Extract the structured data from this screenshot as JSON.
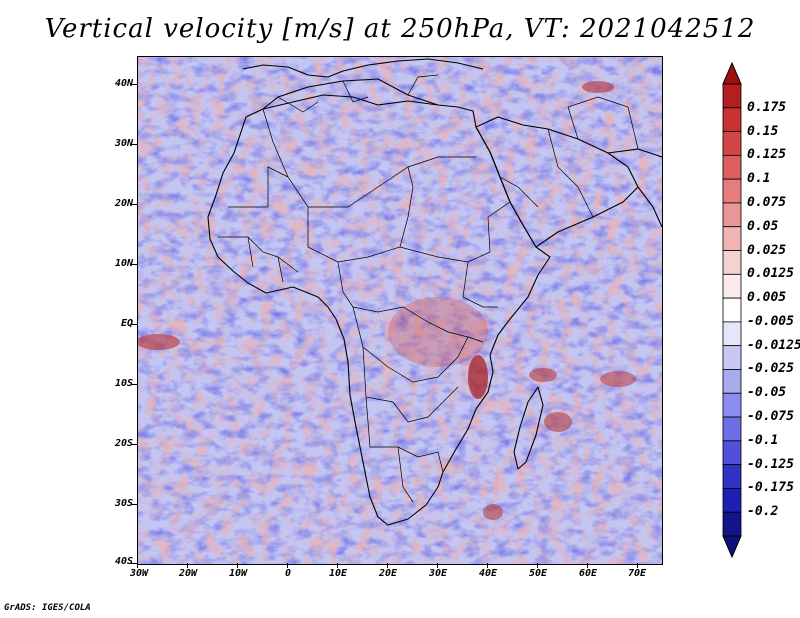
{
  "title": "Vertical velocity [m/s] at 250hPa, VT: 2021042512",
  "footer": "GrADS: IGES/COLA",
  "map": {
    "lat_labels": [
      "40N",
      "30N",
      "20N",
      "10N",
      "EQ",
      "10S",
      "20S",
      "30S",
      "40S"
    ],
    "lon_labels": [
      "30W",
      "20W",
      "10W",
      "0",
      "10E",
      "20E",
      "30E",
      "40E",
      "50E",
      "60E",
      "70E"
    ],
    "lat_range": [
      -40,
      45
    ],
    "lon_range": [
      -30,
      75
    ]
  },
  "colorbar": {
    "labels": [
      "0.175",
      "0.15",
      "0.125",
      "0.1",
      "0.075",
      "0.05",
      "0.025",
      "0.0125",
      "0.005",
      "-0.005",
      "-0.0125",
      "-0.025",
      "-0.05",
      "-0.075",
      "-0.1",
      "-0.125",
      "-0.175",
      "-0.2"
    ],
    "colors": [
      "#b41e1e",
      "#c83232",
      "#d24646",
      "#dc5f5f",
      "#e67d7d",
      "#eb9696",
      "#f0b4b4",
      "#f5d2d2",
      "#fbebeb",
      "#ffffff",
      "#e6e6fa",
      "#c8c8f5",
      "#aaaaf0",
      "#8c8cf0",
      "#6e6ee6",
      "#5050dc",
      "#3232c8",
      "#1e1eb4",
      "#14148c"
    ],
    "top_triangle_color": "#a01010",
    "bottom_triangle_color": "#10107a"
  }
}
